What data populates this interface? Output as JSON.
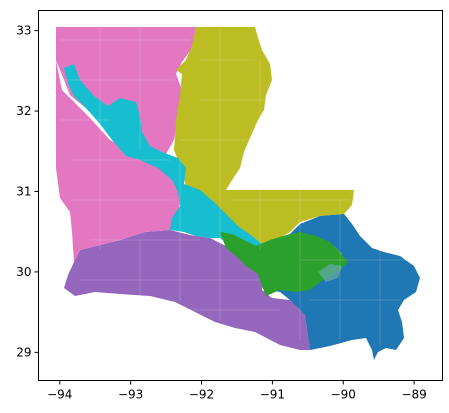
{
  "chart_data": {
    "type": "map",
    "title": "",
    "xlabel": "",
    "ylabel": "",
    "xlim": [
      -94.3,
      -88.6
    ],
    "ylim": [
      28.65,
      33.25
    ],
    "x_ticks": [
      -94,
      -93,
      -92,
      -91,
      -90,
      -89
    ],
    "x_tick_labels": [
      "−94",
      "−93",
      "−92",
      "−91",
      "−90",
      "−89"
    ],
    "y_ticks": [
      29,
      30,
      31,
      32,
      33
    ],
    "y_tick_labels": [
      "29",
      "30",
      "31",
      "32",
      "33"
    ],
    "grid": false,
    "legend": "none",
    "districts": [
      {
        "id": "district-1",
        "color": "#e377c2"
      },
      {
        "id": "district-2",
        "color": "#bcbd22"
      },
      {
        "id": "district-3",
        "color": "#17becf"
      },
      {
        "id": "district-4",
        "color": "#9467bd"
      },
      {
        "id": "district-5",
        "color": "#2ca02c"
      },
      {
        "id": "district-6",
        "color": "#1f77b4"
      }
    ]
  }
}
